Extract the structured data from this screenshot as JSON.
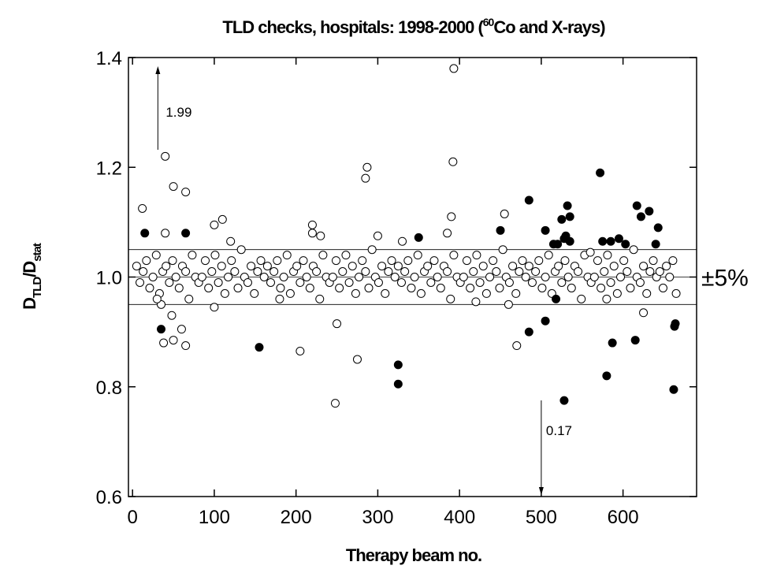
{
  "chart_data": {
    "type": "scatter",
    "title": [
      "TLD checks, hospitals: 1998-2000 (",
      "60",
      "Co and X-rays)"
    ],
    "x_label": "Therapy beam no.",
    "y_label": [
      "D",
      "TLD",
      "/D",
      "stat"
    ],
    "xlim": [
      -5,
      690
    ],
    "ylim": [
      0.6,
      1.4
    ],
    "xticks": [
      0,
      100,
      200,
      300,
      400,
      500,
      600
    ],
    "yticks": [
      0.6,
      0.8,
      {
        "value": 1,
        "label": "1.0"
      },
      1.2,
      1.4
    ],
    "hlines": [
      0.95,
      1.0,
      1.05
    ],
    "hline_label": "±5%",
    "annotations": [
      {
        "label": "1.99",
        "x": 31,
        "direction": "up"
      },
      {
        "label": "0.17",
        "x": 500,
        "direction": "down"
      }
    ],
    "series": [
      {
        "marker": "open",
        "color": "#000000",
        "x": [
          5,
          9,
          13,
          17,
          21,
          25,
          29,
          33,
          37,
          41,
          45,
          49,
          53,
          57,
          61,
          65,
          69,
          73,
          77,
          81,
          85,
          89,
          93,
          97,
          101,
          105,
          109,
          113,
          117,
          121,
          125,
          129,
          133,
          137,
          141,
          145,
          149,
          153,
          157,
          161,
          165,
          169,
          173,
          177,
          181,
          185,
          189,
          193,
          197,
          201,
          205,
          209,
          213,
          217,
          221,
          225,
          229,
          233,
          237,
          241,
          245,
          249,
          253,
          257,
          261,
          265,
          269,
          273,
          277,
          281,
          285,
          289,
          293,
          297,
          301,
          305,
          309,
          313,
          317,
          321,
          325,
          329,
          333,
          337,
          341,
          345,
          349,
          353,
          357,
          361,
          365,
          369,
          373,
          377,
          381,
          385,
          389,
          393,
          397,
          401,
          405,
          409,
          413,
          417,
          421,
          425,
          429,
          433,
          437,
          441,
          445,
          449,
          453,
          457,
          461,
          465,
          469,
          473,
          477,
          481,
          485,
          489,
          493,
          497,
          501,
          505,
          509,
          513,
          517,
          521,
          525,
          529,
          533,
          537,
          541,
          545,
          549,
          553,
          557,
          561,
          565,
          569,
          573,
          577,
          581,
          585,
          589,
          593,
          597,
          601,
          605,
          609,
          613,
          617,
          621,
          625,
          629,
          633,
          637,
          641,
          645,
          649,
          653,
          657,
          661,
          665
        ],
        "y": [
          1.02,
          0.99,
          1.01,
          1.03,
          0.98,
          1.0,
          1.04,
          0.97,
          1.01,
          1.02,
          0.99,
          1.03,
          1.0,
          0.98,
          1.02,
          1.01,
          0.96,
          1.04,
          1.0,
          0.99,
          1.0,
          1.03,
          0.98,
          1.01,
          1.04,
          0.99,
          1.02,
          0.97,
          1.0,
          1.03,
          1.01,
          0.98,
          1.05,
          1.0,
          0.99,
          1.02,
          0.97,
          1.01,
          1.03,
          1.0,
          1.02,
          0.99,
          1.01,
          1.03,
          0.98,
          1.0,
          1.04,
          0.97,
          1.01,
          1.02,
          0.99,
          1.03,
          1.0,
          0.98,
          1.02,
          1.01,
          0.96,
          1.04,
          1.0,
          0.99,
          1.0,
          1.03,
          0.98,
          1.01,
          1.04,
          0.99,
          1.02,
          0.97,
          1.0,
          1.03,
          1.01,
          0.98,
          1.05,
          1.0,
          0.99,
          1.02,
          0.97,
          1.01,
          1.03,
          1.0,
          1.02,
          0.99,
          1.01,
          1.03,
          0.98,
          1.0,
          1.04,
          0.97,
          1.01,
          1.02,
          0.99,
          1.03,
          1.0,
          0.98,
          1.02,
          1.01,
          0.96,
          1.04,
          1.0,
          0.99,
          1.0,
          1.03,
          0.98,
          1.01,
          1.04,
          0.99,
          1.02,
          0.97,
          1.0,
          1.03,
          1.01,
          0.98,
          1.05,
          1.0,
          0.99,
          1.02,
          0.97,
          1.01,
          1.03,
          1.0,
          1.02,
          0.99,
          1.01,
          1.03,
          0.98,
          1.0,
          1.04,
          0.97,
          1.01,
          1.02,
          0.99,
          1.03,
          1.0,
          0.98,
          1.02,
          1.01,
          0.96,
          1.04,
          1.0,
          0.99,
          1.0,
          1.03,
          0.98,
          1.01,
          1.04,
          0.99,
          1.02,
          0.97,
          1.0,
          1.03,
          1.01,
          0.98,
          1.05,
          1.0,
          0.99,
          1.02,
          0.97,
          1.01,
          1.03,
          1.0,
          1.01,
          0.98,
          1.02,
          1.0,
          1.03,
          0.97
        ]
      },
      {
        "marker": "open",
        "color": "#000000",
        "x": [
          12,
          40,
          50,
          65,
          40,
          35,
          38,
          48,
          50,
          60,
          65,
          100,
          110,
          100,
          205,
          220,
          220,
          230,
          250,
          248,
          275,
          285,
          287,
          300,
          390,
          392,
          393,
          385,
          455,
          470,
          460,
          625,
          580,
          30,
          120,
          180,
          330,
          420,
          560
        ],
        "y": [
          1.125,
          1.22,
          1.165,
          1.155,
          1.08,
          0.95,
          0.88,
          0.93,
          0.885,
          0.905,
          0.875,
          1.095,
          1.105,
          0.945,
          0.865,
          1.095,
          1.08,
          1.075,
          0.915,
          0.77,
          0.85,
          1.18,
          1.2,
          1.075,
          1.11,
          1.21,
          1.38,
          1.08,
          1.115,
          0.875,
          0.95,
          0.935,
          0.96,
          0.96,
          1.065,
          0.96,
          1.065,
          0.955,
          1.045
        ]
      },
      {
        "marker": "filled",
        "color": "#000000",
        "x": [
          15,
          35,
          65,
          155,
          350,
          325,
          325,
          485,
          450,
          485,
          505,
          505,
          515,
          520,
          518,
          525,
          528,
          532,
          530,
          528,
          535,
          535,
          572,
          575,
          580,
          585,
          587,
          595,
          603,
          615,
          617,
          622,
          632,
          640,
          643,
          664,
          663,
          662
        ],
        "y": [
          1.08,
          0.905,
          1.08,
          0.872,
          1.072,
          0.84,
          0.805,
          1.14,
          1.085,
          0.9,
          0.92,
          1.085,
          1.06,
          1.06,
          0.96,
          1.105,
          0.775,
          1.13,
          1.075,
          1.07,
          1.065,
          1.11,
          1.19,
          1.065,
          0.82,
          1.065,
          0.88,
          1.07,
          1.06,
          0.885,
          1.13,
          1.11,
          1.12,
          1.06,
          1.09,
          0.915,
          0.91,
          0.795
        ]
      }
    ]
  }
}
